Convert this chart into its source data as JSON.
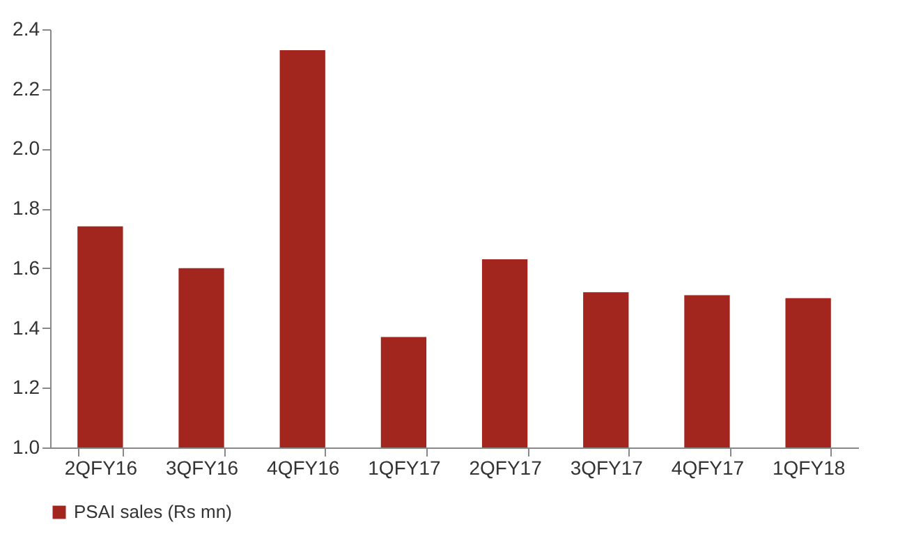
{
  "chart_data": {
    "type": "bar",
    "categories": [
      "2QFY16",
      "3QFY16",
      "4QFY16",
      "1QFY17",
      "2QFY17",
      "3QFY17",
      "4QFY17",
      "1QFY18"
    ],
    "series": [
      {
        "name": "PSAI sales (Rs mn)",
        "color": "#a3261e",
        "values": [
          1.74,
          1.6,
          2.33,
          1.37,
          1.63,
          1.52,
          1.51,
          1.5
        ]
      }
    ],
    "ylim": [
      1.0,
      2.4
    ],
    "yticks": [
      {
        "value": 1.0,
        "label": "1.0"
      },
      {
        "value": 1.2,
        "label": "1.2"
      },
      {
        "value": 1.4,
        "label": "1.4"
      },
      {
        "value": 1.6,
        "label": "1.6"
      },
      {
        "value": 1.8,
        "label": "1.8"
      },
      {
        "value": 2.0,
        "label": "2.0"
      },
      {
        "value": 2.2,
        "label": "2.2"
      },
      {
        "value": 2.4,
        "label": "2.4"
      }
    ],
    "grid": false,
    "legend": "bottom"
  }
}
